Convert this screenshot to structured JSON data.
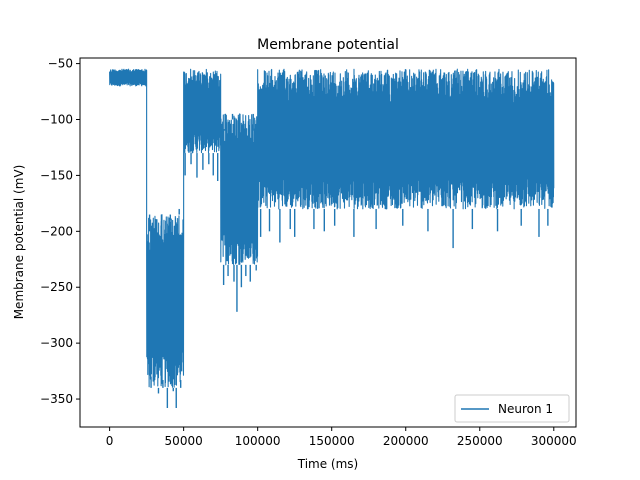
{
  "chart_data": {
    "type": "line",
    "title": "Membrane potential",
    "xlabel": "Time (ms)",
    "ylabel": "Membrane potential (mV)",
    "xlim": [
      -20000,
      315000
    ],
    "ylim": [
      -375,
      -45
    ],
    "xticks": [
      0,
      50000,
      100000,
      150000,
      200000,
      250000,
      300000
    ],
    "yticks": [
      -350,
      -300,
      -250,
      -200,
      -150,
      -100,
      -50
    ],
    "grid": false,
    "legend_position": "lower-right",
    "series": [
      {
        "name": "Neuron 1",
        "color": "#1f77b4",
        "segments": [
          {
            "x_start": 0,
            "x_end": 25000,
            "upper": -55,
            "lower": -70,
            "dips": []
          },
          {
            "x_start": 25000,
            "x_end": 50000,
            "upper": -185,
            "lower": -340,
            "dips": [
              [
                28000,
                -330
              ],
              [
                33000,
                -345
              ],
              [
                36000,
                -333
              ],
              [
                39000,
                -358
              ],
              [
                43000,
                -343
              ],
              [
                45000,
                -358
              ],
              [
                48000,
                -333
              ]
            ],
            "peaks": [
              [
                27000,
                -200
              ],
              [
                31000,
                -185
              ],
              [
                35000,
                -195
              ],
              [
                41000,
                -190
              ],
              [
                47000,
                -180
              ]
            ]
          },
          {
            "x_start": 50000,
            "x_end": 75000,
            "upper": -55,
            "lower": -130,
            "dips": [
              [
                51000,
                -150
              ],
              [
                55000,
                -140
              ],
              [
                59000,
                -152
              ],
              [
                63000,
                -145
              ],
              [
                67000,
                -140
              ],
              [
                70000,
                -150
              ],
              [
                73000,
                -155
              ]
            ]
          },
          {
            "x_start": 75000,
            "x_end": 100000,
            "upper": -95,
            "lower": -230,
            "dips": [
              [
                77000,
                -248
              ],
              [
                80000,
                -240
              ],
              [
                84000,
                -245
              ],
              [
                86000,
                -272
              ],
              [
                89000,
                -250
              ],
              [
                92000,
                -240
              ],
              [
                95000,
                -245
              ],
              [
                99000,
                -235
              ]
            ],
            "peaks": [
              [
                78000,
                -110
              ],
              [
                83000,
                -100
              ],
              [
                88000,
                -105
              ],
              [
                93000,
                -95
              ],
              [
                97000,
                -110
              ]
            ]
          },
          {
            "x_start": 100000,
            "x_end": 300000,
            "upper": -55,
            "lower": -180,
            "dips": [
              [
                102000,
                -205
              ],
              [
                108000,
                -200
              ],
              [
                115000,
                -210
              ],
              [
                122000,
                -198
              ],
              [
                125000,
                -205
              ],
              [
                138000,
                -198
              ],
              [
                145000,
                -200
              ],
              [
                152000,
                -195
              ],
              [
                165000,
                -205
              ],
              [
                180000,
                -198
              ],
              [
                198000,
                -195
              ],
              [
                215000,
                -200
              ],
              [
                232000,
                -215
              ],
              [
                245000,
                -198
              ],
              [
                262000,
                -200
              ],
              [
                278000,
                -195
              ],
              [
                290000,
                -205
              ],
              [
                296000,
                -195
              ]
            ]
          }
        ]
      }
    ]
  }
}
